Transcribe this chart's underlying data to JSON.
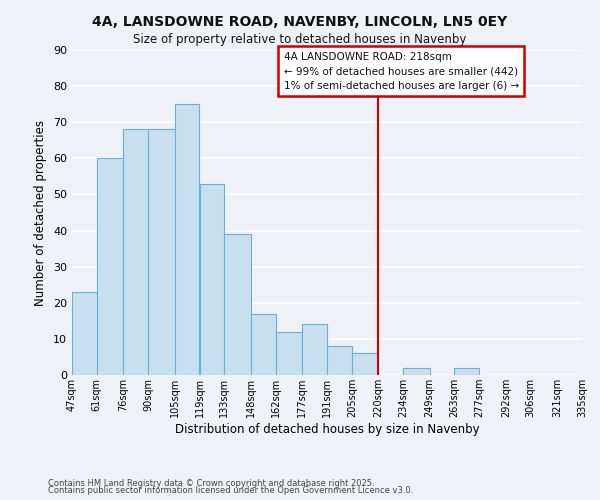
{
  "title_line1": "4A, LANSDOWNE ROAD, NAVENBY, LINCOLN, LN5 0EY",
  "title_line2": "Size of property relative to detached houses in Navenby",
  "xlabel": "Distribution of detached houses by size in Navenby",
  "ylabel": "Number of detached properties",
  "bar_edges": [
    47,
    61,
    76,
    90,
    105,
    119,
    133,
    148,
    162,
    177,
    191,
    205,
    220,
    234,
    249,
    263,
    277,
    292,
    306,
    321,
    335
  ],
  "bar_heights": [
    23,
    60,
    68,
    68,
    75,
    53,
    39,
    17,
    12,
    14,
    8,
    6,
    0,
    2,
    0,
    2,
    0,
    0,
    0,
    0
  ],
  "bar_color": "#c8dff0",
  "bar_edgecolor": "#6aafd6",
  "ylim": [
    0,
    90
  ],
  "yticks": [
    0,
    10,
    20,
    30,
    40,
    50,
    60,
    70,
    80,
    90
  ],
  "xtick_labels": [
    "47sqm",
    "61sqm",
    "76sqm",
    "90sqm",
    "105sqm",
    "119sqm",
    "133sqm",
    "148sqm",
    "162sqm",
    "177sqm",
    "191sqm",
    "205sqm",
    "220sqm",
    "234sqm",
    "249sqm",
    "263sqm",
    "277sqm",
    "292sqm",
    "306sqm",
    "321sqm",
    "335sqm"
  ],
  "vline_x": 220,
  "vline_color": "#cc0000",
  "annotation_title": "4A LANSDOWNE ROAD: 218sqm",
  "annotation_line2": "← 99% of detached houses are smaller (442)",
  "annotation_line3": "1% of semi-detached houses are larger (6) →",
  "bg_color": "#eef2f7",
  "grid_color": "#ffffff",
  "footer_line1": "Contains HM Land Registry data © Crown copyright and database right 2025.",
  "footer_line2": "Contains public sector information licensed under the Open Government Licence v3.0."
}
